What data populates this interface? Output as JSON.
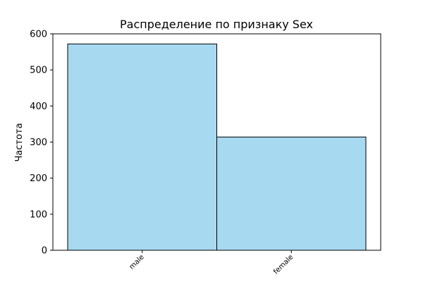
{
  "chart_data": {
    "type": "bar",
    "title": "Распределение по признаку Sex",
    "xlabel": "",
    "ylabel": "Частота",
    "categories": [
      "male",
      "female"
    ],
    "values": [
      572,
      314
    ],
    "ylim": [
      0,
      600
    ],
    "yticks": [
      0,
      100,
      200,
      300,
      400,
      500,
      600
    ],
    "bar_color": "#a7d9f0",
    "edge_color": "#000000",
    "grid": false,
    "legend": "none"
  }
}
